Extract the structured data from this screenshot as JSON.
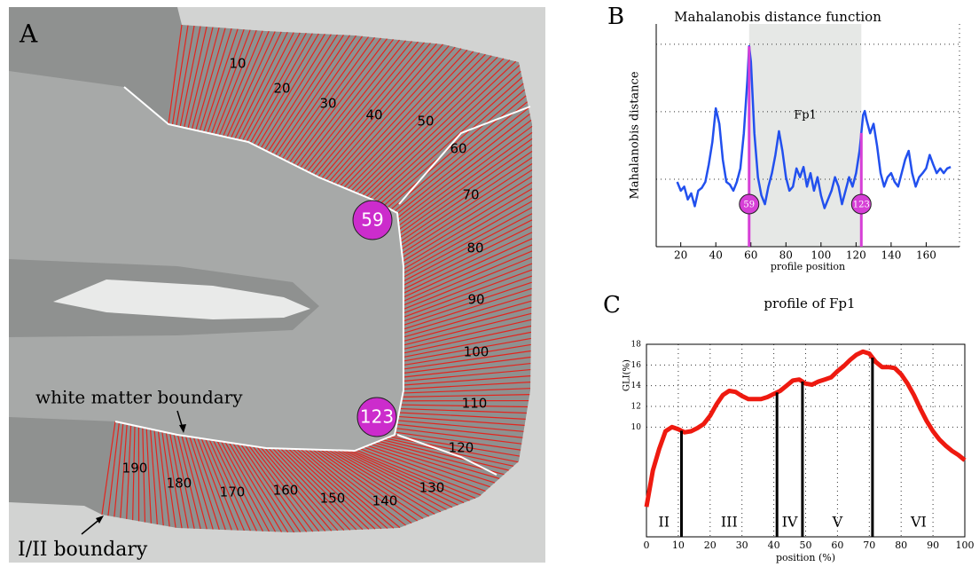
{
  "panel_labels": [
    "A",
    "B",
    "C"
  ],
  "panel_a": {
    "profile_labels": [
      10,
      20,
      30,
      40,
      50,
      60,
      70,
      80,
      90,
      100,
      110,
      120,
      130,
      140,
      150,
      160,
      170,
      180,
      190
    ],
    "white_matter_label": "white matter boundary",
    "pial_label": "I/II boundary"
  },
  "chart_data": [
    {
      "type": "line",
      "title": "Mahalanobis distance function",
      "ylabel": "Mahalanobis distance",
      "xlabel": "profile position",
      "x": [
        18,
        20,
        22,
        24,
        26,
        28,
        30,
        32,
        34,
        36,
        38,
        40,
        42,
        44,
        46,
        48,
        50,
        52,
        54,
        56,
        58,
        59,
        60,
        62,
        64,
        66,
        68,
        70,
        72,
        74,
        76,
        78,
        80,
        82,
        84,
        86,
        88,
        90,
        92,
        94,
        96,
        98,
        100,
        102,
        104,
        106,
        108,
        110,
        112,
        114,
        116,
        118,
        120,
        122,
        124,
        125,
        126,
        128,
        130,
        132,
        134,
        136,
        138,
        140,
        142,
        144,
        146,
        148,
        150,
        152,
        154,
        156,
        158,
        160,
        162,
        164,
        166,
        168,
        170,
        172,
        174
      ],
      "values": [
        0.96,
        0.83,
        0.89,
        0.7,
        0.79,
        0.6,
        0.83,
        0.87,
        0.96,
        1.22,
        1.55,
        2.05,
        1.82,
        1.29,
        0.96,
        0.92,
        0.83,
        0.96,
        1.16,
        1.68,
        2.47,
        2.97,
        2.74,
        1.68,
        1.03,
        0.76,
        0.63,
        0.89,
        1.09,
        1.36,
        1.71,
        1.42,
        1.03,
        0.83,
        0.89,
        1.16,
        1.03,
        1.18,
        0.89,
        1.09,
        0.83,
        1.03,
        0.76,
        0.57,
        0.7,
        0.83,
        1.03,
        0.89,
        0.63,
        0.83,
        1.03,
        0.89,
        1.09,
        1.42,
        1.95,
        2.01,
        1.88,
        1.68,
        1.82,
        1.49,
        1.09,
        0.89,
        1.03,
        1.09,
        0.96,
        0.89,
        1.09,
        1.29,
        1.42,
        1.09,
        0.89,
        1.03,
        1.09,
        1.16,
        1.36,
        1.22,
        1.09,
        1.16,
        1.09,
        1.16,
        1.18
      ],
      "color": "#2250ee",
      "xlim": [
        6,
        179
      ],
      "xticks": [
        20,
        40,
        60,
        80,
        100,
        120,
        140,
        160
      ],
      "ylim": [
        0,
        3.3
      ],
      "ygrid": [
        1,
        2,
        3
      ],
      "region_label": "Fp1",
      "boundaries": [
        59,
        123
      ],
      "boundary_color": "#d63fd6",
      "region_color": "#e6e8e6"
    },
    {
      "type": "line",
      "title": "profile of Fp1",
      "ylabel": "GLI(%)",
      "xlabel": "position (%)",
      "x": [
        0,
        2,
        4,
        6,
        8,
        10,
        12,
        14,
        16,
        18,
        20,
        22,
        24,
        26,
        28,
        30,
        32,
        34,
        36,
        38,
        40,
        42,
        44,
        46,
        48,
        50,
        52,
        54,
        56,
        58,
        60,
        62,
        64,
        66,
        68,
        70,
        72,
        74,
        76,
        78,
        80,
        82,
        84,
        86,
        88,
        90,
        92,
        94,
        96,
        98,
        100
      ],
      "values": [
        2.3,
        5.8,
        7.9,
        9.6,
        10.0,
        9.8,
        9.5,
        9.6,
        9.9,
        10.3,
        11.1,
        12.2,
        13.1,
        13.5,
        13.4,
        13.0,
        12.7,
        12.7,
        12.7,
        12.9,
        13.2,
        13.5,
        14.0,
        14.5,
        14.6,
        14.2,
        14.1,
        14.4,
        14.6,
        14.8,
        15.4,
        15.9,
        16.5,
        17.0,
        17.3,
        17.1,
        16.3,
        15.8,
        15.8,
        15.7,
        15.1,
        14.2,
        13.1,
        11.8,
        10.6,
        9.6,
        8.8,
        8.2,
        7.7,
        7.3,
        6.8
      ],
      "color": "#ee1a10",
      "xlim": [
        0,
        100
      ],
      "xticks": [
        0,
        10,
        20,
        30,
        40,
        50,
        60,
        70,
        80,
        90,
        100
      ],
      "ylim": [
        -0.6,
        18
      ],
      "yticks": [
        10,
        12,
        14,
        16,
        18
      ],
      "grid": true,
      "boundaries": [
        11,
        41,
        49,
        71
      ],
      "layers": [
        "II",
        "III",
        "IV",
        "V",
        "VI"
      ]
    }
  ]
}
